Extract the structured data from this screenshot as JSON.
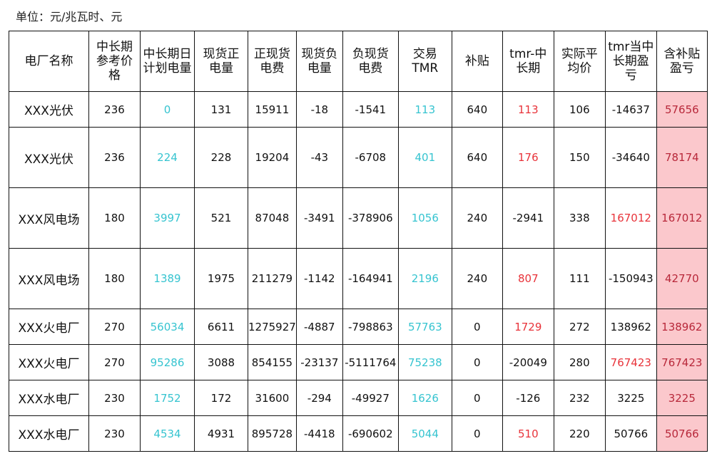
{
  "unit_label": "单位：元/兆瓦时、元",
  "colors": {
    "cyan": "#36c4d0",
    "red": "#e8333a",
    "pink_fill": "#fbc8cc"
  },
  "headers": [
    "电厂名称",
    "中长期\n参考价\n格",
    "中长期日\n计划电量",
    "现货正\n电量",
    "正现货\n电费",
    "现货负\n电量",
    "负现货\n电费",
    "交易\nTMR",
    "补贴",
    "tmr-中\n长期",
    "实际平\n均价",
    "tmr当中\n长期盈\n亏",
    "含补贴\n盈亏"
  ],
  "rows": [
    [
      {
        "v": "XXX光伏"
      },
      {
        "v": "236"
      },
      {
        "v": "0",
        "c": "cyan"
      },
      {
        "v": "131"
      },
      {
        "v": "15911"
      },
      {
        "v": "-18"
      },
      {
        "v": "-1541"
      },
      {
        "v": "113",
        "c": "cyan"
      },
      {
        "v": "640"
      },
      {
        "v": "113",
        "c": "red"
      },
      {
        "v": "106"
      },
      {
        "v": "-14637"
      },
      {
        "v": "57656",
        "c": "pink"
      }
    ],
    [
      {
        "v": "XXX光伏"
      },
      {
        "v": "236"
      },
      {
        "v": "224",
        "c": "cyan"
      },
      {
        "v": "228"
      },
      {
        "v": "19204"
      },
      {
        "v": "-43"
      },
      {
        "v": "-6708"
      },
      {
        "v": "401",
        "c": "cyan"
      },
      {
        "v": "640"
      },
      {
        "v": "176",
        "c": "red"
      },
      {
        "v": "150"
      },
      {
        "v": "-34640"
      },
      {
        "v": "78174",
        "c": "pink"
      }
    ],
    [
      {
        "v": "XXX风电场"
      },
      {
        "v": "180"
      },
      {
        "v": "3997",
        "c": "cyan"
      },
      {
        "v": "521"
      },
      {
        "v": "87048"
      },
      {
        "v": "-3491"
      },
      {
        "v": "-378906"
      },
      {
        "v": "1056",
        "c": "cyan"
      },
      {
        "v": "240"
      },
      {
        "v": "-2941"
      },
      {
        "v": "338"
      },
      {
        "v": "167012",
        "c": "red"
      },
      {
        "v": "167012",
        "c": "pink"
      }
    ],
    [
      {
        "v": "XXX风电场"
      },
      {
        "v": "180"
      },
      {
        "v": "1389",
        "c": "cyan"
      },
      {
        "v": "1975"
      },
      {
        "v": "211279"
      },
      {
        "v": "-1142"
      },
      {
        "v": "-164941"
      },
      {
        "v": "2196",
        "c": "cyan"
      },
      {
        "v": "240"
      },
      {
        "v": "807",
        "c": "red"
      },
      {
        "v": "111"
      },
      {
        "v": "-150943"
      },
      {
        "v": "42770",
        "c": "pink"
      }
    ],
    [
      {
        "v": "XXX火电厂"
      },
      {
        "v": "270"
      },
      {
        "v": "56034",
        "c": "cyan"
      },
      {
        "v": "6611"
      },
      {
        "v": "1275927"
      },
      {
        "v": "-4887"
      },
      {
        "v": "-798863"
      },
      {
        "v": "57763",
        "c": "cyan"
      },
      {
        "v": "0"
      },
      {
        "v": "1729",
        "c": "red"
      },
      {
        "v": "272"
      },
      {
        "v": "138962"
      },
      {
        "v": "138962",
        "c": "pink"
      }
    ],
    [
      {
        "v": "XXX火电厂"
      },
      {
        "v": "270"
      },
      {
        "v": "95286",
        "c": "cyan"
      },
      {
        "v": "3088"
      },
      {
        "v": "854155"
      },
      {
        "v": "-23137"
      },
      {
        "v": "-5111764"
      },
      {
        "v": "75238",
        "c": "cyan"
      },
      {
        "v": "0"
      },
      {
        "v": "-20049"
      },
      {
        "v": "280"
      },
      {
        "v": "767423",
        "c": "red"
      },
      {
        "v": "767423",
        "c": "pink"
      }
    ],
    [
      {
        "v": "XXX水电厂"
      },
      {
        "v": "230"
      },
      {
        "v": "1752",
        "c": "cyan"
      },
      {
        "v": "172"
      },
      {
        "v": "31600"
      },
      {
        "v": "-294"
      },
      {
        "v": "-49927"
      },
      {
        "v": "1626",
        "c": "cyan"
      },
      {
        "v": "0"
      },
      {
        "v": "-126"
      },
      {
        "v": "232"
      },
      {
        "v": "3225"
      },
      {
        "v": "3225",
        "c": "pink"
      }
    ],
    [
      {
        "v": "XXX水电厂"
      },
      {
        "v": "230"
      },
      {
        "v": "4534",
        "c": "cyan"
      },
      {
        "v": "4931"
      },
      {
        "v": "895728"
      },
      {
        "v": "-4418"
      },
      {
        "v": "-690602"
      },
      {
        "v": "5044",
        "c": "cyan"
      },
      {
        "v": "0"
      },
      {
        "v": "510",
        "c": "red"
      },
      {
        "v": "220"
      },
      {
        "v": "50766"
      },
      {
        "v": "50766",
        "c": "pink"
      }
    ]
  ]
}
